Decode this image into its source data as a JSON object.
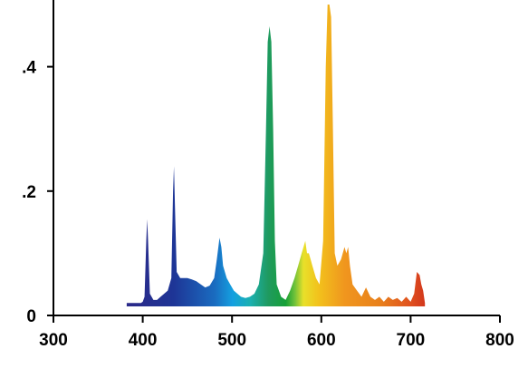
{
  "chart_data": {
    "type": "area",
    "title": "",
    "xlabel": "",
    "ylabel": "",
    "xlim": [
      300,
      800
    ],
    "ylim": [
      0,
      0.5
    ],
    "grid": false,
    "legend": "none",
    "fill": "wavelength-colored spectrum",
    "x_ticks": [
      {
        "value": 300,
        "label": "300"
      },
      {
        "value": 400,
        "label": "400"
      },
      {
        "value": 500,
        "label": "500"
      },
      {
        "value": 600,
        "label": "600"
      },
      {
        "value": 700,
        "label": "700"
      },
      {
        "value": 800,
        "label": "800"
      }
    ],
    "y_ticks": [
      {
        "value": 0,
        "label": "0"
      },
      {
        "value": 0.2,
        "label": ".2"
      },
      {
        "value": 0.4,
        "label": ".4"
      }
    ],
    "x": [
      382,
      398,
      400,
      402,
      404,
      405,
      406,
      408,
      412,
      416,
      420,
      424,
      428,
      432,
      434,
      435,
      436,
      438,
      442,
      446,
      450,
      455,
      460,
      465,
      470,
      475,
      480,
      483,
      486,
      488,
      490,
      494,
      498,
      502,
      506,
      510,
      515,
      520,
      525,
      530,
      535,
      538,
      540,
      542,
      544,
      546,
      548,
      550,
      555,
      560,
      565,
      570,
      574,
      578,
      580,
      582,
      584,
      586,
      588,
      590,
      594,
      598,
      602,
      605,
      607,
      609,
      611,
      613,
      615,
      618,
      622,
      626,
      628,
      630,
      632,
      635,
      640,
      645,
      650,
      655,
      660,
      665,
      670,
      675,
      680,
      685,
      690,
      695,
      700,
      704,
      707,
      710,
      712,
      714,
      716
    ],
    "values": [
      0.02,
      0.02,
      0.022,
      0.03,
      0.12,
      0.155,
      0.12,
      0.035,
      0.025,
      0.025,
      0.03,
      0.035,
      0.04,
      0.06,
      0.2,
      0.24,
      0.18,
      0.07,
      0.06,
      0.06,
      0.06,
      0.058,
      0.055,
      0.05,
      0.045,
      0.048,
      0.06,
      0.09,
      0.125,
      0.11,
      0.08,
      0.06,
      0.05,
      0.04,
      0.035,
      0.03,
      0.028,
      0.03,
      0.035,
      0.05,
      0.1,
      0.3,
      0.44,
      0.465,
      0.44,
      0.3,
      0.12,
      0.05,
      0.03,
      0.025,
      0.04,
      0.06,
      0.08,
      0.1,
      0.11,
      0.12,
      0.1,
      0.1,
      0.09,
      0.08,
      0.06,
      0.05,
      0.12,
      0.4,
      0.5,
      0.5,
      0.48,
      0.3,
      0.1,
      0.08,
      0.09,
      0.11,
      0.1,
      0.11,
      0.08,
      0.05,
      0.04,
      0.03,
      0.045,
      0.03,
      0.025,
      0.03,
      0.022,
      0.03,
      0.025,
      0.028,
      0.022,
      0.03,
      0.022,
      0.035,
      0.07,
      0.065,
      0.05,
      0.04,
      0.02
    ]
  }
}
